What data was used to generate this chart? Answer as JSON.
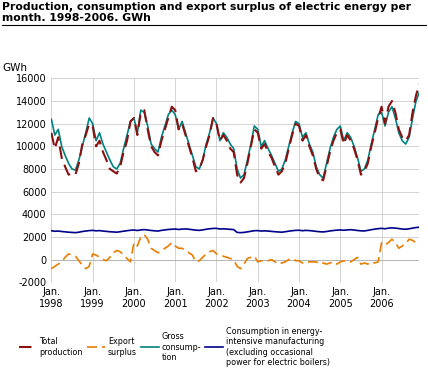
{
  "title1": "Production, consumption and export surplus of electric energy per",
  "title2": "month. 1998-2006. GWh",
  "ylabel": "GWh",
  "ylim": [
    -2000,
    16000
  ],
  "yticks": [
    -2000,
    0,
    2000,
    4000,
    6000,
    8000,
    10000,
    12000,
    14000,
    16000
  ],
  "ytick_labels": [
    "-2000",
    "0",
    "2000",
    "4000",
    "6000",
    "8000",
    "10000",
    "12000",
    "14000",
    "16000"
  ],
  "background_color": "#ffffff",
  "plot_bg_color": "#ffffff",
  "grid_color": "#cccccc",
  "colors": {
    "production": "#8B1010",
    "export": "#E87D00",
    "gross": "#008080",
    "manufacturing": "#00008B"
  },
  "production": [
    11200,
    9800,
    10800,
    9000,
    8200,
    7500,
    7600,
    7500,
    8500,
    10200,
    11000,
    12000,
    11800,
    10000,
    10500,
    9500,
    8800,
    8000,
    7800,
    7600,
    8200,
    9500,
    10500,
    12200,
    12500,
    11000,
    13000,
    13200,
    11500,
    10000,
    9500,
    9200,
    10500,
    11500,
    12500,
    13500,
    13200,
    11500,
    12000,
    11000,
    10000,
    9000,
    7800,
    8000,
    8800,
    10000,
    11000,
    12500,
    12000,
    10500,
    11000,
    10500,
    9800,
    9500,
    7500,
    6800,
    7200,
    8500,
    10000,
    11500,
    11200,
    9800,
    10200,
    9500,
    9000,
    8200,
    7500,
    7800,
    8500,
    9800,
    11000,
    12000,
    11800,
    10500,
    11000,
    10000,
    9200,
    8000,
    7200,
    7000,
    8200,
    9500,
    10500,
    11200,
    11500,
    10200,
    11000,
    10500,
    9800,
    8800,
    7500,
    7800,
    8500,
    10000,
    11200,
    12500,
    13500,
    12000,
    13500,
    14000,
    13000,
    11500,
    10800,
    10500,
    11000,
    13000,
    14500,
    15500
  ],
  "gross_consumption": [
    12400,
    11000,
    11500,
    10000,
    9200,
    8500,
    8000,
    7900,
    8800,
    10000,
    11200,
    12500,
    12000,
    10500,
    11200,
    10200,
    9500,
    8800,
    8200,
    8000,
    8500,
    9800,
    11000,
    12200,
    12500,
    11200,
    13200,
    13000,
    11800,
    10200,
    9800,
    9500,
    10800,
    11800,
    12800,
    13200,
    12800,
    11500,
    12200,
    11200,
    10200,
    9200,
    8200,
    8000,
    8800,
    10200,
    11200,
    12500,
    12000,
    10500,
    11200,
    10800,
    10200,
    9800,
    8000,
    7200,
    7500,
    8800,
    10200,
    11800,
    11500,
    10000,
    10500,
    9800,
    9200,
    8500,
    7800,
    8000,
    8800,
    10000,
    11200,
    12200,
    12000,
    10800,
    11200,
    10200,
    9500,
    8200,
    7500,
    7200,
    8500,
    9800,
    10800,
    11500,
    11800,
    10500,
    11200,
    10800,
    10000,
    9000,
    7800,
    8000,
    8800,
    10200,
    11500,
    12800,
    13000,
    11800,
    13000,
    13500,
    12500,
    11200,
    10500,
    10200,
    10800,
    12500,
    14000,
    14800
  ],
  "export_surplus": [
    -800,
    -600,
    -400,
    -200,
    200,
    500,
    400,
    300,
    -100,
    -500,
    -800,
    -600,
    500,
    400,
    200,
    0,
    -100,
    200,
    600,
    800,
    700,
    400,
    100,
    -200,
    1500,
    1200,
    2000,
    2200,
    1800,
    1000,
    800,
    600,
    800,
    1000,
    1200,
    1500,
    1200,
    1000,
    1000,
    800,
    600,
    400,
    -200,
    -100,
    200,
    500,
    700,
    800,
    500,
    400,
    300,
    200,
    100,
    0,
    -600,
    -800,
    -400,
    100,
    200,
    300,
    -200,
    -100,
    -200,
    -100,
    0,
    -200,
    -400,
    -300,
    -200,
    0,
    100,
    -100,
    -100,
    -300,
    -200,
    -200,
    -200,
    -200,
    -400,
    -300,
    -400,
    -300,
    -200,
    -400,
    -200,
    -100,
    -200,
    -200,
    0,
    200,
    -400,
    -300,
    -400,
    -200,
    -300,
    -200,
    1500,
    1300,
    1500,
    1800,
    1500,
    1000,
    1200,
    1400,
    1800,
    1700,
    1500,
    1700
  ],
  "manufacturing": [
    2550,
    2500,
    2520,
    2480,
    2450,
    2420,
    2400,
    2380,
    2420,
    2480,
    2520,
    2560,
    2580,
    2540,
    2560,
    2520,
    2490,
    2460,
    2440,
    2420,
    2460,
    2510,
    2550,
    2590,
    2610,
    2570,
    2620,
    2650,
    2610,
    2570,
    2540,
    2520,
    2580,
    2620,
    2660,
    2680,
    2700,
    2660,
    2690,
    2710,
    2680,
    2640,
    2600,
    2580,
    2620,
    2680,
    2720,
    2750,
    2760,
    2700,
    2720,
    2700,
    2670,
    2650,
    2400,
    2380,
    2400,
    2450,
    2500,
    2550,
    2560,
    2520,
    2540,
    2520,
    2490,
    2460,
    2440,
    2420,
    2460,
    2510,
    2550,
    2580,
    2590,
    2550,
    2580,
    2560,
    2530,
    2490,
    2460,
    2440,
    2480,
    2530,
    2570,
    2600,
    2620,
    2590,
    2620,
    2640,
    2610,
    2570,
    2540,
    2530,
    2580,
    2640,
    2690,
    2730,
    2760,
    2720,
    2780,
    2800,
    2780,
    2740,
    2700,
    2680,
    2720,
    2780,
    2830,
    2860
  ]
}
